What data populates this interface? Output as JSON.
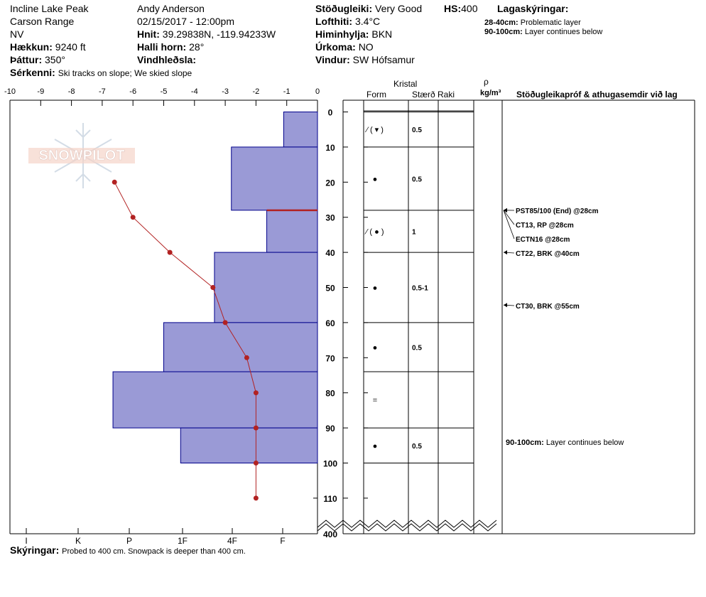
{
  "header": {
    "location": "Incline Lake Peak",
    "range": "Carson Range",
    "state": "NV",
    "elevation_label": "Hækkun:",
    "elevation": "9240 ft",
    "aspect_label": "Þáttur:",
    "aspect": "350°",
    "features_label": "Sérkenni:",
    "features": "Ski tracks on slope; We skied slope",
    "observer": "Andy Anderson",
    "datetime": "02/15/2017 - 12:00pm",
    "coords_label": "Hnit:",
    "coords": "39.29838N, -119.94233W",
    "slope_label": "Halli horn:",
    "slope": "28°",
    "wind_loading_label": "Vindhleðsla:",
    "wind_loading": "",
    "stability_label": "Stöðugleiki:",
    "stability": "Very Good",
    "hs_label": "HS:",
    "hs": "400",
    "air_temp_label": "Lofthiti:",
    "air_temp": "3.4°C",
    "sky_label": "Himinhylja:",
    "sky": "BKN",
    "precip_label": "Úrkoma:",
    "precip": "NO",
    "wind_label": "Vindur:",
    "wind": "SW Hófsamur",
    "layers_title": "Lagaskýringar:",
    "layer_notes": [
      {
        "range": "28-40cm:",
        "text": "Problematic layer"
      },
      {
        "range": "90-100cm:",
        "text": "Layer continues below"
      }
    ]
  },
  "logo_text": "SNOWPILOT",
  "columns": {
    "crystal": "Kristal",
    "form": "Form",
    "size": "Stærð",
    "moisture": "Raki",
    "rho": "ρ",
    "density_unit": "kg/m³",
    "tests_title": "Stöðugleikapróf & athugasemdir við lag"
  },
  "notes": {
    "label": "Skýringar:",
    "text": "Probed to 400 cm. Snowpack is deeper than 400 cm."
  },
  "colors": {
    "hardness_fill": "#9a9ad6",
    "hardness_stroke": "#00008b",
    "temp_line": "#b22222",
    "problem_layer": "#b22222"
  },
  "chart_data": {
    "type": "snow-profile",
    "depth_axis": {
      "ticks": [
        0,
        10,
        20,
        30,
        40,
        50,
        60,
        70,
        80,
        90,
        100,
        110
      ],
      "bottom_label": "400"
    },
    "temperature_axis": {
      "range": [
        -10,
        0
      ],
      "ticks": [
        "-10",
        "-9",
        "-8",
        "-7",
        "-6",
        "-5",
        "-4",
        "-3",
        "-2",
        "-1",
        "0"
      ]
    },
    "hardness_axis": {
      "ticks": [
        "I",
        "K",
        "P",
        "1F",
        "4F",
        "F"
      ]
    },
    "hardness_layers": [
      {
        "top": 0,
        "bottom": 10,
        "temp_scale_value": -1.1
      },
      {
        "top": 10,
        "bottom": 28,
        "temp_scale_value": -2.8
      },
      {
        "top": 28,
        "bottom": 40,
        "temp_scale_value": -1.65
      },
      {
        "top": 40,
        "bottom": 60,
        "temp_scale_value": -3.35
      },
      {
        "top": 60,
        "bottom": 74,
        "temp_scale_value": -5.0
      },
      {
        "top": 74,
        "bottom": 90,
        "temp_scale_value": -6.65
      },
      {
        "top": 90,
        "bottom": 100,
        "temp_scale_value": -4.45
      }
    ],
    "problematic_layer_depth": 28,
    "temperature_profile": [
      {
        "depth": 20,
        "temp": -6.6
      },
      {
        "depth": 30,
        "temp": -6.0
      },
      {
        "depth": 40,
        "temp": -4.8
      },
      {
        "depth": 50,
        "temp": -3.4
      },
      {
        "depth": 60,
        "temp": -3.0
      },
      {
        "depth": 70,
        "temp": -2.3
      },
      {
        "depth": 80,
        "temp": -2.0
      },
      {
        "depth": 90,
        "temp": -2.0
      },
      {
        "depth": 100,
        "temp": -2.0
      },
      {
        "depth": 110,
        "temp": -2.0
      }
    ],
    "crystals": [
      {
        "depth": 5,
        "form": "⁄ ( ▾ )",
        "size": "0.5"
      },
      {
        "depth": 19,
        "form": "●",
        "size": "0.5"
      },
      {
        "depth": 34,
        "form": "⁄ ( ● )",
        "size": "1"
      },
      {
        "depth": 50,
        "form": "●",
        "size": "0.5-1"
      },
      {
        "depth": 67,
        "form": "●",
        "size": "0.5"
      },
      {
        "depth": 82,
        "form": "=",
        "size": ""
      },
      {
        "depth": 95,
        "form": "●",
        "size": "0.5"
      }
    ],
    "tests": [
      {
        "depth": 28,
        "text": "PST85/100 (End) @28cm"
      },
      {
        "depth": 28,
        "text": "CT13, RP @28cm"
      },
      {
        "depth": 28,
        "text": "ECTN16 @28cm"
      },
      {
        "depth": 40,
        "text": "CT22, BRK @40cm"
      },
      {
        "depth": 55,
        "text": "CT30, BRK @55cm"
      }
    ],
    "layer_comments": [
      {
        "depth": 95,
        "range": "90-100cm:",
        "text": "Layer continues below"
      }
    ]
  }
}
